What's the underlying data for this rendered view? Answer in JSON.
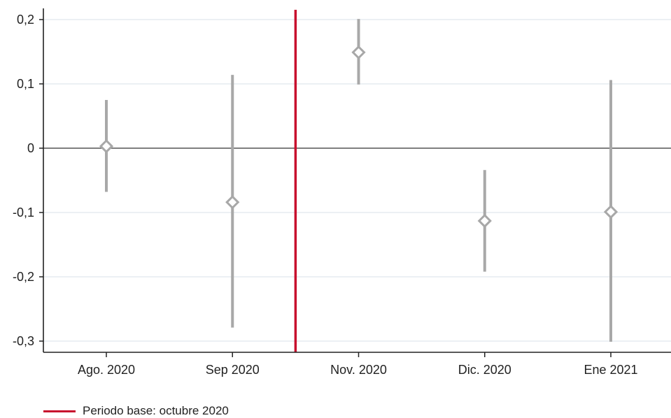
{
  "chart_data": {
    "type": "scatter",
    "subtype": "coefficient-plot-with-confidence-intervals",
    "categories": [
      "Ago. 2020",
      "Sep 2020",
      "Nov. 2020",
      "Dic. 2020",
      "Ene 2021"
    ],
    "base_period_position": "between Sep 2020 and Nov. 2020",
    "series": [
      {
        "estimates": [
          0.003,
          -0.084,
          0.149,
          -0.113,
          -0.099
        ],
        "ci_low": [
          -0.068,
          -0.279,
          0.099,
          -0.192,
          -0.301
        ],
        "ci_high": [
          0.075,
          0.114,
          0.201,
          -0.034,
          0.106
        ]
      }
    ],
    "ylim": [
      -0.32,
      0.22
    ],
    "y_ticks": [
      0.2,
      0.1,
      0,
      -0.1,
      -0.2,
      -0.3
    ],
    "y_tick_labels": [
      "0,2",
      "0,1",
      "0",
      "-0,1",
      "-0,2",
      "-0,3"
    ],
    "zero_line": true,
    "grid": "horizontal",
    "legend": {
      "position": "bottom-left",
      "entries": [
        {
          "label": "Periodo base: octubre 2020",
          "color": "#c8102e"
        }
      ]
    },
    "colors": {
      "marker_and_ci": "#a8a8a8",
      "base_line": "#c8102e",
      "axis": "#222222",
      "grid": "#e6ecf0"
    }
  }
}
